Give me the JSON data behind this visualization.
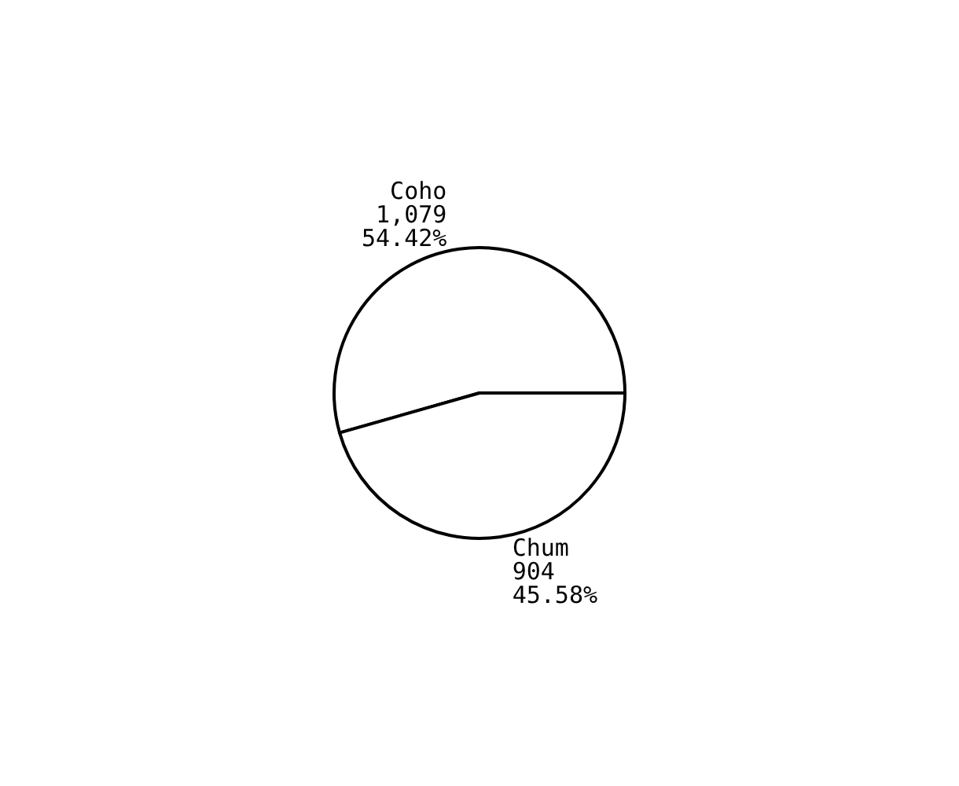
{
  "chart_data": {
    "type": "pie",
    "categories": [
      "Coho",
      "Chum"
    ],
    "values": [
      1079,
      904
    ],
    "value_labels": [
      "1,079\n54.42%",
      "904\n45.58%"
    ],
    "colors": [
      "#ffffff",
      "#ffffff"
    ]
  }
}
